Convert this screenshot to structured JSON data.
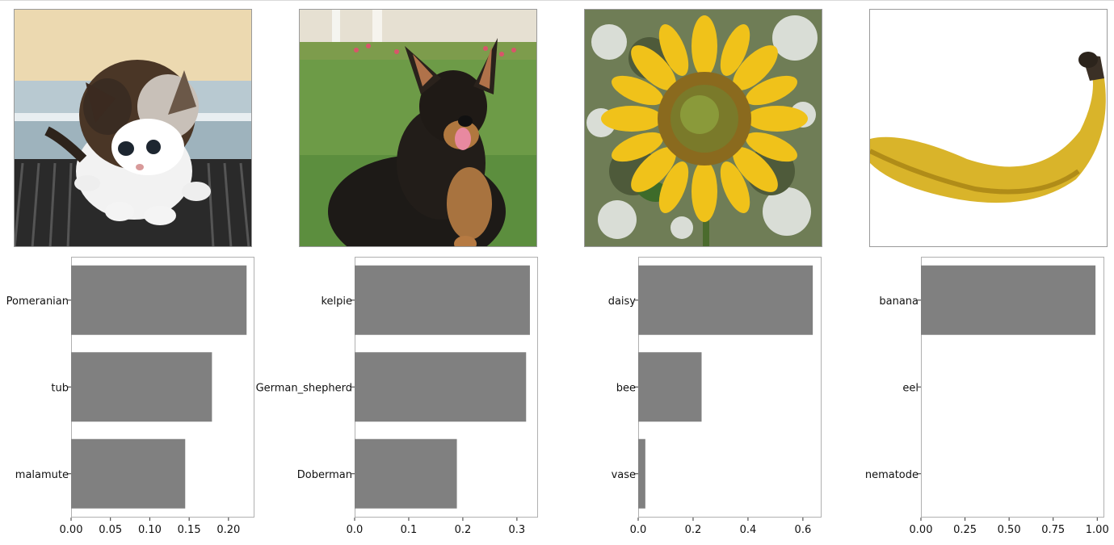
{
  "chart_data": [
    {
      "type": "bar",
      "orientation": "horizontal",
      "image": "kitten",
      "categories": [
        "Pomeranian",
        "tub",
        "malamute"
      ],
      "values": [
        0.223,
        0.179,
        0.145
      ],
      "xlim": [
        0,
        0.233
      ],
      "xticks": [
        "0.00",
        "0.05",
        "0.10",
        "0.15",
        "0.20"
      ],
      "tick_values": [
        0,
        0.05,
        0.1,
        0.15,
        0.2
      ],
      "bar_color": "#808080"
    },
    {
      "type": "bar",
      "orientation": "horizontal",
      "image": "dog",
      "categories": [
        "kelpie",
        "German_shepherd",
        "Doberman"
      ],
      "values": [
        0.324,
        0.317,
        0.189
      ],
      "xlim": [
        0,
        0.339
      ],
      "xticks": [
        "0.0",
        "0.1",
        "0.2",
        "0.3"
      ],
      "tick_values": [
        0,
        0.1,
        0.2,
        0.3
      ],
      "bar_color": "#808080"
    },
    {
      "type": "bar",
      "orientation": "horizontal",
      "image": "sunflower",
      "categories": [
        "daisy",
        "bee",
        "vase"
      ],
      "values": [
        0.636,
        0.231,
        0.026
      ],
      "xlim": [
        0,
        0.668
      ],
      "xticks": [
        "0.0",
        "0.2",
        "0.4",
        "0.6"
      ],
      "tick_values": [
        0,
        0.2,
        0.4,
        0.6
      ],
      "bar_color": "#808080"
    },
    {
      "type": "bar",
      "orientation": "horizontal",
      "image": "banana",
      "categories": [
        "banana",
        "eel",
        "nematode"
      ],
      "values": [
        0.99,
        0.0,
        0.0
      ],
      "xlim": [
        0,
        1.04
      ],
      "xticks": [
        "0.00",
        "0.25",
        "0.50",
        "0.75",
        "1.00"
      ],
      "tick_values": [
        0,
        0.25,
        0.5,
        0.75,
        1.0
      ],
      "bar_color": "#808080"
    }
  ],
  "image_axis_ticks": [
    "0",
    "25",
    "50",
    "75",
    "100",
    "125",
    "150",
    "175"
  ],
  "colors": {
    "bar": "#808080",
    "axis": "#b0b0b0",
    "text": "#111111"
  }
}
